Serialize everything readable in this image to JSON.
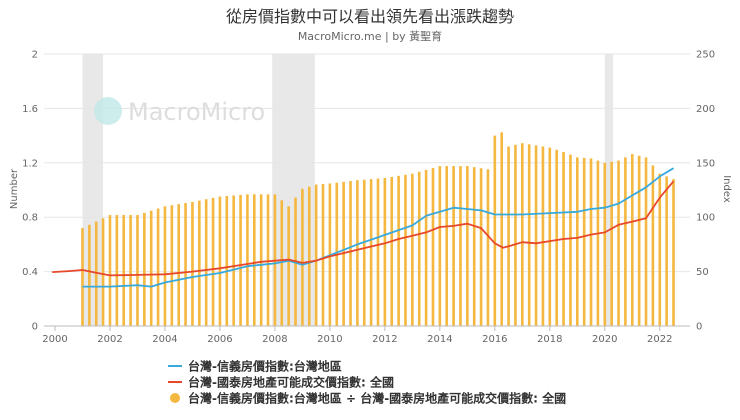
{
  "chart_data": {
    "type": "bar+line",
    "title": "從房價指數中可以看出領先看出漲跌趨勢",
    "subtitle": "MacroMicro.me | by 黃聖育",
    "watermark": "MacroMicro",
    "ylabel_left": "Number",
    "ylabel_right": "Index",
    "xlim": [
      1999.6,
      2023.1
    ],
    "ylim_left": [
      0,
      2
    ],
    "ylim_right": [
      0,
      250
    ],
    "y_left_ticks": [
      "0",
      "0.4",
      "0.8",
      "1.2",
      "1.6",
      "2"
    ],
    "y_right_ticks": [
      "0",
      "50",
      "100",
      "150",
      "200",
      "250"
    ],
    "x_ticks": [
      "2000",
      "2002",
      "2004",
      "2006",
      "2008",
      "2010",
      "2012",
      "2014",
      "2016",
      "2018",
      "2020",
      "2022"
    ],
    "grid": true,
    "legend_position": "bottom",
    "shaded_periods": [
      [
        2001.0,
        2001.75
      ],
      [
        2007.9,
        2009.45
      ],
      [
        2020.0,
        2020.3
      ]
    ],
    "colors": {
      "bar": "#f4b73f",
      "cathay": "#e8482a",
      "sinyi": "#38a9dc",
      "recession": "#e8e8e8",
      "grid": "#e6e6e6",
      "axis_text": "#666666",
      "title": "#333333"
    },
    "series": [
      {
        "name": "台灣-信義房價指數:台灣地區",
        "axis": "left",
        "color": "#38a9dc",
        "x": [
          2001.0,
          2002.0,
          2003.0,
          2003.5,
          2004.0,
          2005.0,
          2006.0,
          2007.0,
          2007.5,
          2008.0,
          2008.5,
          2009.0,
          2009.5,
          2010.0,
          2011.0,
          2012.0,
          2013.0,
          2013.5,
          2014.0,
          2014.5,
          2015.0,
          2015.5,
          2016.0,
          2017.0,
          2018.0,
          2019.0,
          2019.5,
          2020.0,
          2020.5,
          2021.0,
          2021.5,
          2022.0,
          2022.5
        ],
        "values": [
          0.29,
          0.29,
          0.3,
          0.29,
          0.32,
          0.36,
          0.39,
          0.44,
          0.45,
          0.46,
          0.48,
          0.45,
          0.48,
          0.52,
          0.6,
          0.67,
          0.74,
          0.81,
          0.84,
          0.87,
          0.86,
          0.85,
          0.82,
          0.82,
          0.83,
          0.84,
          0.86,
          0.87,
          0.9,
          0.96,
          1.02,
          1.1,
          1.16
        ]
      },
      {
        "name": "台灣-國泰房地產可能成交價指數: 全國",
        "axis": "right",
        "color": "#e8482a",
        "x": [
          1999.9,
          2000.5,
          2001.0,
          2001.5,
          2002.0,
          2003.0,
          2004.0,
          2005.0,
          2006.0,
          2007.0,
          2007.5,
          2008.0,
          2008.5,
          2009.0,
          2009.5,
          2010.0,
          2011.0,
          2012.0,
          2012.5,
          2013.0,
          2013.5,
          2014.0,
          2014.5,
          2015.0,
          2015.5,
          2016.0,
          2016.3,
          2016.6,
          2017.0,
          2017.5,
          2018.0,
          2018.5,
          2019.0,
          2019.5,
          2020.0,
          2020.5,
          2021.0,
          2021.5,
          2022.0,
          2022.5
        ],
        "values": [
          49.5,
          50.5,
          51.5,
          49,
          46.5,
          47,
          47.5,
          50,
          53,
          57,
          59,
          60,
          61,
          58,
          60,
          64,
          70,
          76,
          80,
          83,
          86,
          91,
          92,
          94,
          90,
          76,
          72,
          74,
          77,
          76,
          78,
          80,
          81,
          84,
          86,
          93,
          96,
          99,
          118,
          133
        ]
      },
      {
        "name": "台灣-信義房價指數:台灣地區 ÷ 台灣-國泰房地產可能成交價指數: 全國",
        "axis": "right",
        "type": "bar",
        "color": "#f4b73f",
        "x": [
          2001.0,
          2002.0,
          2003.0,
          2004.0,
          2005.0,
          2006.0,
          2007.0,
          2008.0,
          2008.5,
          2009.0,
          2009.5,
          2010.0,
          2011.0,
          2012.0,
          2013.0,
          2014.0,
          2015.0,
          2015.75,
          2016.0,
          2016.25,
          2016.5,
          2017.0,
          2018.0,
          2018.5,
          2019.0,
          2019.5,
          2020.0,
          2020.5,
          2021.0,
          2021.5,
          2022.0,
          2022.5
        ],
        "values": [
          90,
          102,
          102,
          110,
          114,
          119,
          121,
          121,
          110,
          126,
          130,
          131,
          134,
          136,
          140,
          147,
          147,
          144,
          175,
          178,
          165,
          168,
          164,
          160,
          155,
          154,
          150,
          152,
          158,
          155,
          140,
          135
        ]
      }
    ],
    "legend": [
      {
        "label": "台灣-信義房價指數:台灣地區",
        "marker": "line",
        "color": "#38a9dc"
      },
      {
        "label": "台灣-國泰房地產可能成交價指數: 全國",
        "marker": "line",
        "color": "#e8482a"
      },
      {
        "label": "台灣-信義房價指數:台灣地區 ÷ 台灣-國泰房地產可能成交價指數: 全國",
        "marker": "circle",
        "color": "#f4b73f"
      }
    ]
  }
}
